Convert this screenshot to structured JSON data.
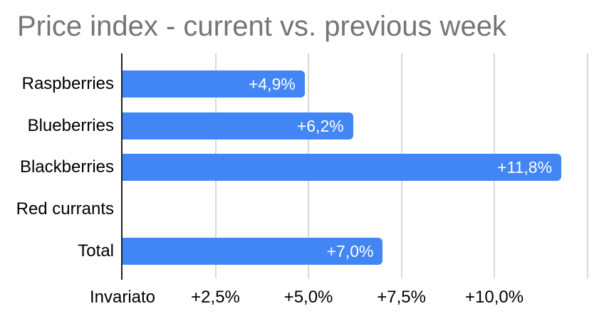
{
  "chart_data": {
    "type": "bar",
    "orientation": "horizontal",
    "title": "Price index - current vs. previous week",
    "categories": [
      "Raspberries",
      "Blueberries",
      "Blackberries",
      "Red currants",
      "Total"
    ],
    "values": [
      4.9,
      6.2,
      11.8,
      0,
      7.0
    ],
    "value_labels": [
      "+4,9%",
      "+6,2%",
      "+11,8%",
      "",
      "+7,0%"
    ],
    "x_axis": {
      "min": 0,
      "max": 12.565,
      "ticks": [
        {
          "value": 0,
          "label": "Invariato"
        },
        {
          "value": 2.5,
          "label": "+2,5%"
        },
        {
          "value": 5,
          "label": "+5,0%"
        },
        {
          "value": 7.5,
          "label": "+7,5%"
        },
        {
          "value": 10,
          "label": "+10,0%"
        },
        {
          "value": 12.5,
          "label": ""
        }
      ]
    },
    "grid": true,
    "legend": "none",
    "colors": {
      "bar": "#4285f4",
      "title": "#757575",
      "gridline": "#d9d9d9",
      "axis_line": "#212121",
      "category_label": "#000000",
      "value_label": "#ffffff",
      "background": "#ffffff"
    }
  }
}
